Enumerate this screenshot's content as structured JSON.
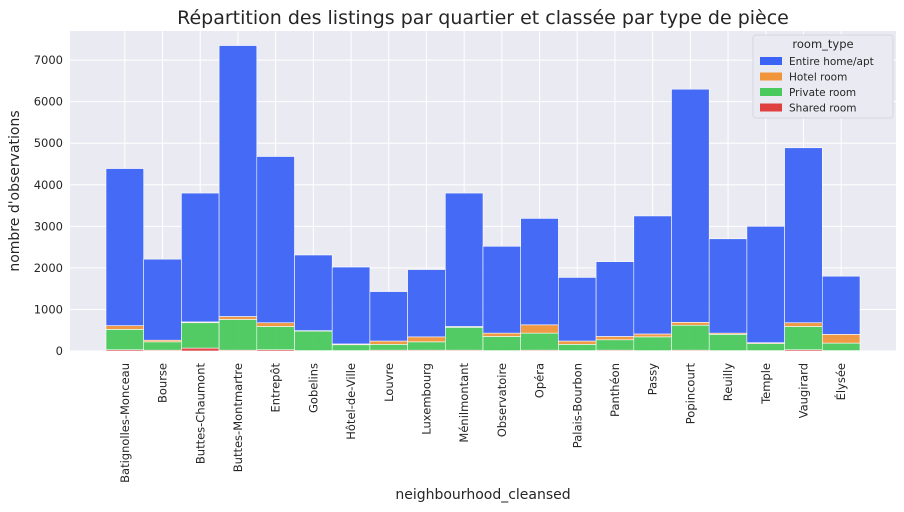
{
  "chart_data": {
    "type": "bar",
    "stacked": true,
    "title": "Répartition des listings par quartier et classée par type de pièce",
    "xlabel": "neighbourhood_cleansed",
    "ylabel": "nombre d'observations",
    "ylim": [
      0,
      7700
    ],
    "yticks": [
      0,
      1000,
      2000,
      3000,
      4000,
      5000,
      6000,
      7000
    ],
    "grid": true,
    "legend_title": "room_type",
    "legend_position": "top-right",
    "categories": [
      "Batignolles-Monceau",
      "Bourse",
      "Buttes-Chaumont",
      "Buttes-Montmartre",
      "Entrepôt",
      "Gobelins",
      "Hôtel-de-Ville",
      "Louvre",
      "Luxembourg",
      "Ménilmontant",
      "Observatoire",
      "Opéra",
      "Palais-Bourbon",
      "Panthéon",
      "Passy",
      "Popincourt",
      "Reuilly",
      "Temple",
      "Vaugirard",
      "Élysée"
    ],
    "series": [
      {
        "name": "Entire home/apt",
        "color": "#3b63f5",
        "values": [
          3780,
          1950,
          3100,
          6520,
          4000,
          1820,
          1850,
          1190,
          1620,
          3210,
          2090,
          2560,
          1530,
          1800,
          2840,
          5610,
          2270,
          2800,
          4210,
          1400
        ]
      },
      {
        "name": "Hotel room",
        "color": "#f0953a",
        "values": [
          90,
          40,
          20,
          70,
          90,
          10,
          20,
          80,
          120,
          20,
          80,
          200,
          80,
          80,
          70,
          70,
          30,
          20,
          90,
          210
        ]
      },
      {
        "name": "Private room",
        "color": "#4ac95c",
        "values": [
          490,
          200,
          610,
          740,
          560,
          470,
          140,
          140,
          200,
          550,
          340,
          410,
          150,
          250,
          330,
          600,
          390,
          170,
          560,
          180
        ]
      },
      {
        "name": "Shared room",
        "color": "#e03f3f",
        "values": [
          30,
          20,
          70,
          20,
          30,
          10,
          10,
          20,
          20,
          20,
          10,
          20,
          10,
          20,
          10,
          20,
          10,
          10,
          30,
          10
        ]
      }
    ]
  },
  "colors": {
    "background": "#ffffff",
    "plot_background": "#eaeaf2",
    "grid": "#ffffff"
  }
}
